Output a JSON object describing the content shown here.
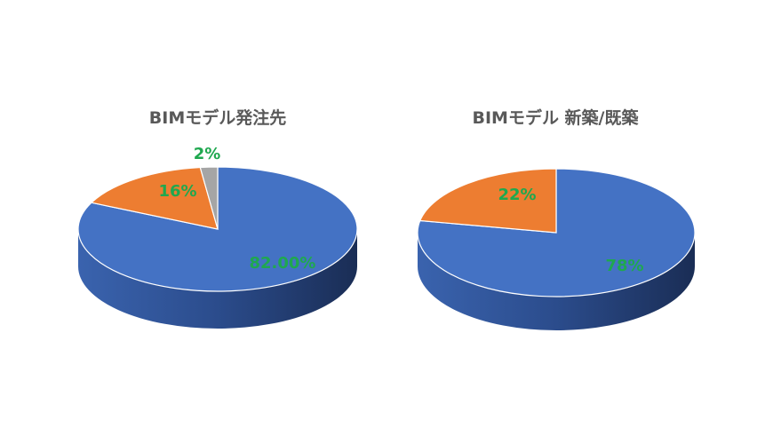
{
  "chart_data": [
    {
      "type": "pie",
      "title": "BIMモデル発注先",
      "three_d": true,
      "start_angle": "12 o'clock, clockwise",
      "slices": [
        {
          "value": 82,
          "label": "82.00%",
          "color": "#4472C4"
        },
        {
          "value": 16,
          "label": "16%",
          "color": "#ED7D31"
        },
        {
          "value": 2,
          "label": "2%",
          "color": "#A5A5A5"
        }
      ],
      "label_color": "#1FA84F",
      "legend": "none"
    },
    {
      "type": "pie",
      "title": "BIMモデル 新築/既築",
      "three_d": true,
      "start_angle": "12 o'clock, clockwise",
      "slices": [
        {
          "value": 78,
          "label": "78%",
          "color": "#4472C4"
        },
        {
          "value": 22,
          "label": "22%",
          "color": "#ED7D31"
        }
      ],
      "label_color": "#1FA84F",
      "legend": "none"
    }
  ]
}
